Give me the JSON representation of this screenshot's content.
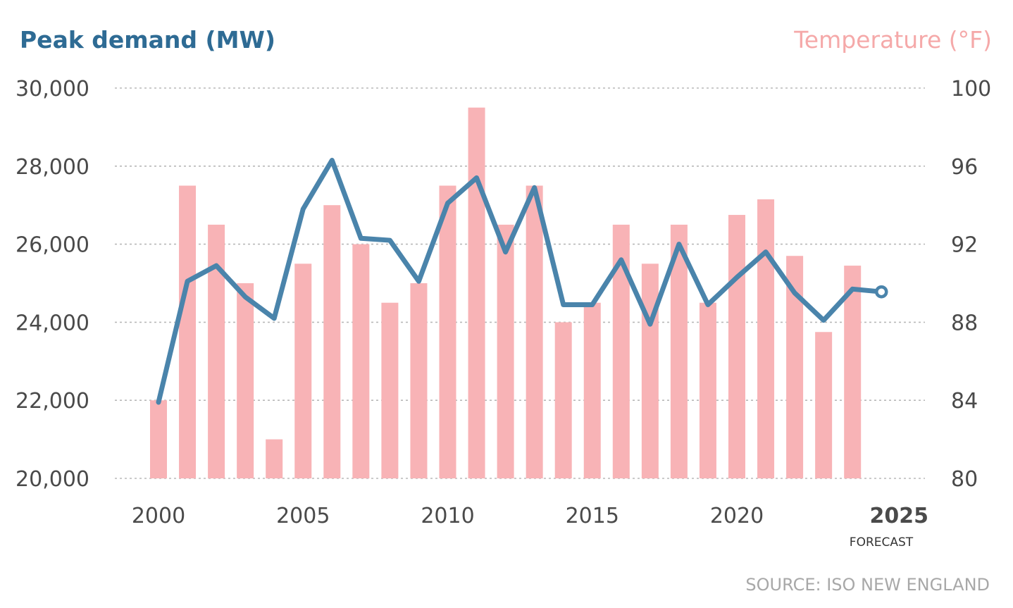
{
  "chart_data": {
    "type": "bar+line",
    "title_left": "Peak demand (MW)",
    "title_right": "Temperature (°F)",
    "years": [
      2000,
      2001,
      2002,
      2003,
      2004,
      2005,
      2006,
      2007,
      2008,
      2009,
      2010,
      2011,
      2012,
      2013,
      2014,
      2015,
      2016,
      2017,
      2018,
      2019,
      2020,
      2021,
      2022,
      2023,
      2024,
      2025
    ],
    "temperature_series": {
      "name": "Temperature (°F)",
      "color": "#f8b3b6",
      "values": [
        84,
        95,
        93,
        90,
        82,
        91,
        94,
        92,
        89,
        90,
        95,
        99,
        93,
        95,
        88,
        89,
        93,
        91,
        93,
        89,
        93.5,
        94.3,
        91.4,
        87.5,
        90.9
      ]
    },
    "demand_series": {
      "name": "Peak demand (MW)",
      "color": "#4a84ab",
      "values": [
        21950,
        25050,
        25450,
        24650,
        24100,
        26900,
        28150,
        26150,
        26100,
        25050,
        27050,
        27700,
        25800,
        27450,
        24450,
        24450,
        25600,
        23950,
        26000,
        24450,
        25150,
        25800,
        24750,
        24050,
        24850,
        24780
      ]
    },
    "forecast_marker": {
      "year": 2025,
      "value": 24780,
      "label": "FORECAST"
    },
    "y_left": {
      "min": 20000,
      "max": 30000,
      "ticks": [
        20000,
        22000,
        24000,
        26000,
        28000,
        30000
      ],
      "tick_labels": [
        "20,000",
        "22,000",
        "24,000",
        "26,000",
        "28,000",
        "30,000"
      ]
    },
    "y_right": {
      "min": 80,
      "max": 100,
      "ticks": [
        80,
        84,
        88,
        92,
        96,
        100
      ],
      "tick_labels": [
        "80",
        "84",
        "88",
        "92",
        "96",
        "100"
      ]
    },
    "x_ticks": [
      2000,
      2005,
      2010,
      2015,
      2020,
      2025
    ],
    "x_tick_labels": [
      "2000",
      "2005",
      "2010",
      "2015",
      "2020",
      "2025"
    ],
    "bold_x_tick": "2025",
    "source": "SOURCE: ISO NEW ENGLAND",
    "colors": {
      "title_left": "#2e6b94",
      "title_right": "#f5a9a9",
      "grid": "#b8b8b8",
      "text": "#4a4a4a"
    }
  }
}
